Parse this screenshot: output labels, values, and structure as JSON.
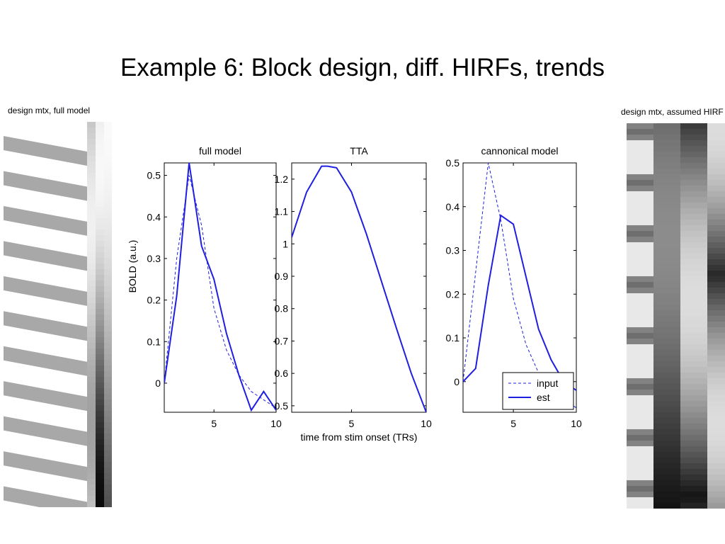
{
  "slide": {
    "title": "Example 6:  Block design, diff. HIRFs, trends"
  },
  "design_matrices": [
    {
      "label": "design mtx, full model",
      "stripe_count": 11,
      "stripe_color": "#a8a8a8",
      "background_color": "#ffffff"
    },
    {
      "label": "design mtx, assumed HIRF",
      "column_count": 4
    }
  ],
  "chart_data": [
    {
      "type": "line",
      "title": "full model",
      "xlabel": "",
      "ylabel": "BOLD (a.u.)",
      "xlim": [
        1,
        10
      ],
      "ylim": [
        -0.07,
        0.53
      ],
      "xticks": [
        5,
        10
      ],
      "yticks": [
        0,
        0.1,
        0.2,
        0.3,
        0.4,
        0.5
      ],
      "grid": false,
      "series": [
        {
          "style": "dashed",
          "color": "#1f1fe0",
          "x": [
            1,
            2,
            3,
            4,
            5,
            6,
            7,
            8,
            9,
            10
          ],
          "y": [
            0.0,
            0.3,
            0.5,
            0.38,
            0.18,
            0.08,
            0.02,
            -0.02,
            -0.04,
            -0.06
          ]
        },
        {
          "style": "solid",
          "color": "#1f1fe0",
          "x": [
            1,
            2,
            3,
            4,
            5,
            6,
            7,
            8,
            9,
            10
          ],
          "y": [
            0.0,
            0.21,
            0.53,
            0.33,
            0.25,
            0.12,
            0.02,
            -0.065,
            -0.02,
            -0.065
          ]
        }
      ]
    },
    {
      "type": "line",
      "title": "TTA",
      "xlabel": "time from stim onset (TRs)",
      "ylabel": "",
      "xlim": [
        1,
        10
      ],
      "ylim": [
        0.48,
        1.25
      ],
      "xticks": [
        5,
        10
      ],
      "yticks": [
        0.5,
        0.6,
        0.7,
        0.8,
        0.9,
        1,
        1.1,
        1.2
      ],
      "grid": false,
      "series": [
        {
          "style": "dashed",
          "color": "#1f1fe0",
          "x": [
            1,
            2,
            3,
            3.4,
            4,
            5,
            6,
            7,
            8,
            9,
            10
          ],
          "y": [
            1.02,
            1.16,
            1.24,
            1.24,
            1.235,
            1.16,
            1.03,
            0.885,
            0.74,
            0.6,
            0.48
          ]
        },
        {
          "style": "solid",
          "color": "#1f1fe0",
          "x": [
            1,
            2,
            3,
            3.4,
            4,
            5,
            6,
            7,
            8,
            9,
            10
          ],
          "y": [
            1.02,
            1.16,
            1.24,
            1.24,
            1.235,
            1.16,
            1.03,
            0.885,
            0.74,
            0.6,
            0.48
          ]
        }
      ]
    },
    {
      "type": "line",
      "title": "cannonical model",
      "xlabel": "",
      "ylabel": "",
      "xlim": [
        1,
        10
      ],
      "ylim": [
        -0.07,
        0.5
      ],
      "xticks": [
        5,
        10
      ],
      "yticks": [
        0,
        0.1,
        0.2,
        0.3,
        0.4,
        0.5
      ],
      "grid": false,
      "legend": "bottom-right",
      "series": [
        {
          "name": "input",
          "style": "dashed",
          "color": "#1f1fe0",
          "x": [
            1,
            2,
            3,
            4,
            5,
            6,
            7,
            8,
            9,
            10
          ],
          "y": [
            0.0,
            0.25,
            0.5,
            0.37,
            0.19,
            0.085,
            0.02,
            -0.02,
            -0.04,
            -0.06
          ]
        },
        {
          "name": "est",
          "style": "solid",
          "color": "#1f1fe0",
          "x": [
            1,
            2,
            3,
            4,
            5,
            6,
            7,
            8,
            9,
            10
          ],
          "y": [
            0.0,
            0.03,
            0.22,
            0.38,
            0.36,
            0.24,
            0.12,
            0.05,
            0.0,
            -0.02
          ]
        }
      ]
    }
  ]
}
